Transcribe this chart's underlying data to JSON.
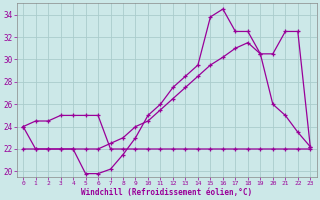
{
  "xlabel": "Windchill (Refroidissement éolien,°C)",
  "bg_color": "#cce8e8",
  "grid_color": "#aacccc",
  "line_color": "#990099",
  "xlim": [
    -0.5,
    23.5
  ],
  "ylim": [
    19.5,
    35.0
  ],
  "yticks": [
    20,
    22,
    24,
    26,
    28,
    30,
    32,
    34
  ],
  "xticks": [
    0,
    1,
    2,
    3,
    4,
    5,
    6,
    7,
    8,
    9,
    10,
    11,
    12,
    13,
    14,
    15,
    16,
    17,
    18,
    19,
    20,
    21,
    22,
    23
  ],
  "line1_x": [
    0,
    1,
    2,
    3,
    4,
    5,
    6,
    7,
    8,
    9,
    10,
    11,
    12,
    13,
    14,
    15,
    16,
    17,
    18,
    19,
    20,
    21,
    22,
    23
  ],
  "line1_y": [
    24.0,
    24.5,
    24.5,
    25.0,
    25.0,
    25.0,
    25.0,
    22.0,
    22.0,
    22.0,
    22.0,
    22.0,
    22.0,
    22.0,
    22.0,
    22.0,
    22.0,
    22.0,
    22.0,
    22.0,
    22.0,
    22.0,
    22.0,
    22.0
  ],
  "line2_x": [
    0,
    1,
    2,
    3,
    4,
    5,
    6,
    7,
    8,
    9,
    10,
    11,
    12,
    13,
    14,
    15,
    16,
    17,
    18,
    19,
    20,
    21,
    22,
    23
  ],
  "line2_y": [
    24.0,
    22.0,
    22.0,
    22.0,
    22.0,
    19.8,
    19.8,
    20.2,
    21.5,
    23.0,
    25.0,
    26.0,
    27.5,
    28.5,
    29.5,
    33.8,
    34.5,
    32.5,
    32.5,
    30.5,
    26.0,
    25.0,
    23.5,
    22.2
  ],
  "line3_x": [
    0,
    1,
    2,
    3,
    4,
    5,
    6,
    7,
    8,
    9,
    10,
    11,
    12,
    13,
    14,
    15,
    16,
    17,
    18,
    19,
    20,
    21,
    22,
    23
  ],
  "line3_y": [
    22.0,
    22.0,
    22.0,
    22.0,
    22.0,
    22.0,
    22.0,
    22.5,
    23.0,
    24.0,
    24.5,
    25.5,
    26.5,
    27.5,
    28.5,
    29.5,
    30.2,
    31.0,
    31.5,
    30.5,
    30.5,
    32.5,
    32.5,
    22.2
  ]
}
